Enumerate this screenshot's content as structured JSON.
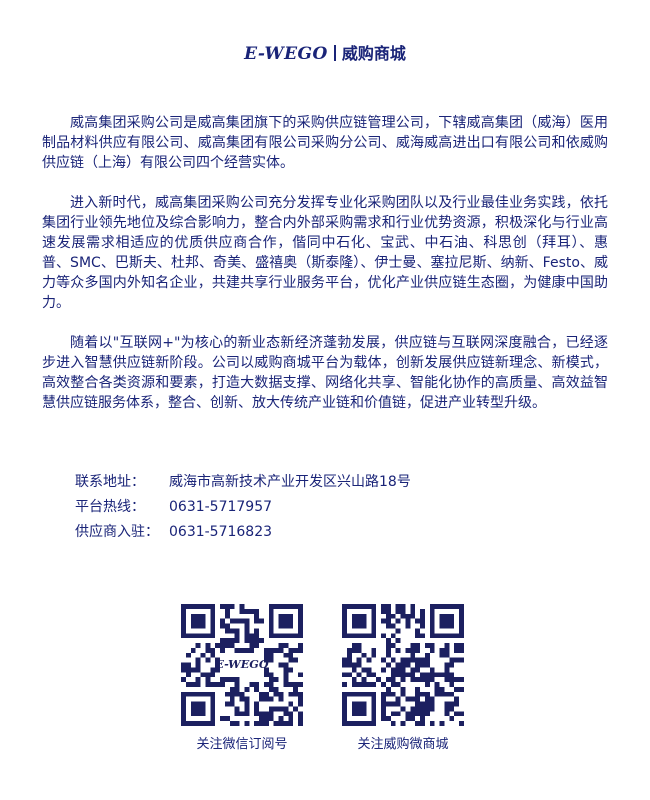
{
  "header": {
    "brand": "E-WEGO",
    "name": "威购商城"
  },
  "content": {
    "paragraphs": [
      "威高集团采购公司是威高集团旗下的采购供应链管理公司，下辖威高集团（威海）医用制品材料供应有限公司、威高集团有限公司采购分公司、威海威高进出口有限公司和依威购供应链（上海）有限公司四个经营实体。",
      "进入新时代，威高集团采购公司充分发挥专业化采购团队以及行业最佳业务实践，依托集团行业领先地位及综合影响力，整合内外部采购需求和行业优势资源，积极深化与行业高速发展需求相适应的优质供应商合作，偕同中石化、宝武、中石油、科思创（拜耳）、惠普、SMC、巴斯夫、杜邦、奇美、盛禧奥（斯泰隆）、伊士曼、塞拉尼斯、纳新、Festo、威力等众多国内外知名企业，共建共享行业服务平台，优化产业供应链生态圈，为健康中国助力。",
      "随着以\"互联网+\"为核心的新业态新经济蓬勃发展，供应链与互联网深度融合，已经逐步进入智慧供应链新阶段。公司以威购商城平台为载体，创新发展供应链新理念、新模式，高效整合各类资源和要素，打造大数据支撑、网络化共享、智能化协作的高质量、高效益智慧供应链服务体系，整合、创新、放大传统产业链和价值链，促进产业转型升级。"
    ]
  },
  "contact": {
    "address_label": "联系地址：",
    "address_value": "威海市高新技术产业开发区兴山路18号",
    "hotline_label": "平台热线：",
    "hotline_value": "0631-5717957",
    "supplier_label": "供应商入驻：",
    "supplier_value": "0631-5716823"
  },
  "qr_codes": [
    {
      "caption": "关注微信订阅号",
      "center_logo": "E-WEGO"
    },
    {
      "caption": "关注威购微商城"
    }
  ],
  "colors": {
    "text": "#1a2478",
    "qr": "#1c2060"
  }
}
